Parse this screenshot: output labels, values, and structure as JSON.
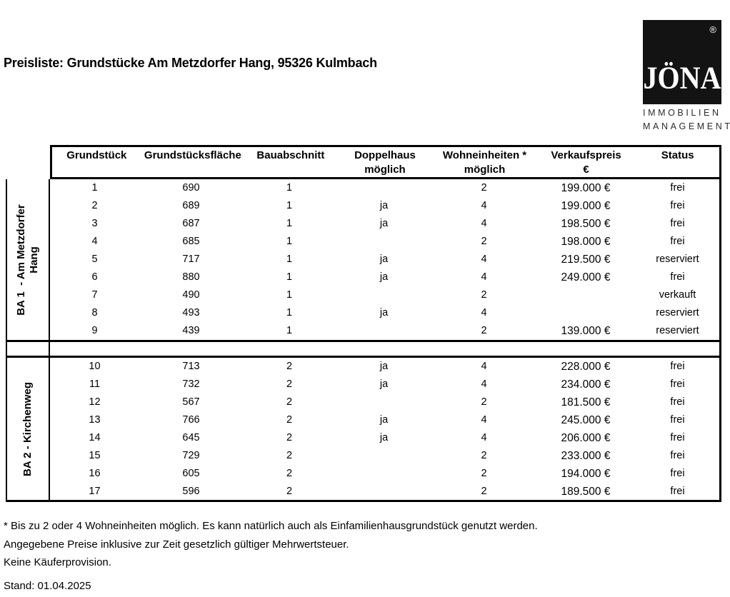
{
  "page": {
    "title": "Preisliste: Grundstücke Am Metzdorfer Hang, 95326 Kulmbach"
  },
  "logo": {
    "brand": "JÖNA",
    "registered_mark": "®",
    "line1": "IMMOBILIEN",
    "line2": "MANAGEMENT"
  },
  "table": {
    "headers": [
      {
        "line1": "Grundstück",
        "line2": ""
      },
      {
        "line1": "Grundstücksfläche",
        "line2": ""
      },
      {
        "line1": "Bauabschnitt",
        "line2": ""
      },
      {
        "line1": "Doppelhaus",
        "line2": "möglich"
      },
      {
        "line1": "Wohneinheiten *",
        "line2": "möglich"
      },
      {
        "line1": "Verkaufspreis",
        "line2": "€"
      },
      {
        "line1": "Status",
        "line2": ""
      }
    ],
    "sections": [
      {
        "label": "BA 1  - Am Metzdorfer Hang",
        "rows": [
          [
            "1",
            "690",
            "1",
            "",
            "2",
            "199.000 €",
            "frei"
          ],
          [
            "2",
            "689",
            "1",
            "ja",
            "4",
            "199.000 €",
            "frei"
          ],
          [
            "3",
            "687",
            "1",
            "ja",
            "4",
            "198.500 €",
            "frei"
          ],
          [
            "4",
            "685",
            "1",
            "",
            "2",
            "198.000 €",
            "frei"
          ],
          [
            "5",
            "717",
            "1",
            "ja",
            "4",
            "219.500 €",
            "reserviert"
          ],
          [
            "6",
            "880",
            "1",
            "ja",
            "4",
            "249.000 €",
            "frei"
          ],
          [
            "7",
            "490",
            "1",
            "",
            "2",
            "",
            "verkauft"
          ],
          [
            "8",
            "493",
            "1",
            "ja",
            "4",
            "",
            "reserviert"
          ],
          [
            "9",
            "439",
            "1",
            "",
            "2",
            "139.000 €",
            "reserviert"
          ]
        ]
      },
      {
        "label": "BA 2 - Kirchenweg",
        "rows": [
          [
            "10",
            "713",
            "2",
            "ja",
            "4",
            "228.000 €",
            "frei"
          ],
          [
            "11",
            "732",
            "2",
            "ja",
            "4",
            "234.000 €",
            "frei"
          ],
          [
            "12",
            "567",
            "2",
            "",
            "2",
            "181.500 €",
            "frei"
          ],
          [
            "13",
            "766",
            "2",
            "ja",
            "4",
            "245.000 €",
            "frei"
          ],
          [
            "14",
            "645",
            "2",
            "ja",
            "4",
            "206.000 €",
            "frei"
          ],
          [
            "15",
            "729",
            "2",
            "",
            "2",
            "233.000 €",
            "frei"
          ],
          [
            "16",
            "605",
            "2",
            "",
            "2",
            "194.000 €",
            "frei"
          ],
          [
            "17",
            "596",
            "2",
            "",
            "2",
            "189.500 €",
            "frei"
          ]
        ]
      }
    ]
  },
  "footnotes": [
    "* Bis zu 2 oder 4 Wohneinheiten möglich. Es kann natürlich auch als Einfamilienhausgrundstück genutzt werden.",
    "Angegebene Preise inklusive zur Zeit gesetzlich gültiger Mehrwertsteuer.",
    "Keine Käuferprovision."
  ],
  "stand": "Stand: 01.04.2025"
}
